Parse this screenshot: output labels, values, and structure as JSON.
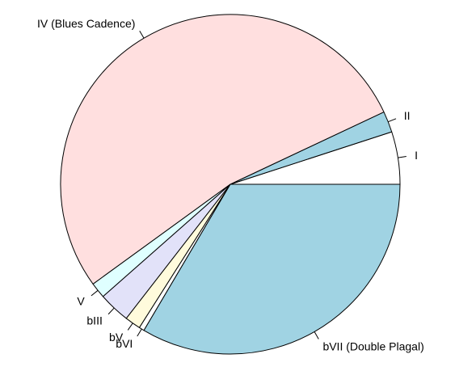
{
  "chart_data": {
    "type": "pie",
    "title": "",
    "direction": "counterclockwise",
    "start_angle_deg": 0,
    "slices": [
      {
        "label": "I",
        "value": 5.0,
        "color": "#ffffff"
      },
      {
        "label": "II",
        "value": 2.0,
        "color": "#a0d3e3"
      },
      {
        "label": "IV (Blues Cadence)",
        "value": 53.0,
        "color": "#ffdfdf"
      },
      {
        "label": "V",
        "value": 1.5,
        "color": "#dfffff"
      },
      {
        "label": "bIII",
        "value": 3.0,
        "color": "#e2e2f9"
      },
      {
        "label": "bV",
        "value": 1.5,
        "color": "#fffbdc"
      },
      {
        "label": "bVI",
        "value": 0.5,
        "color": "#ffffff"
      },
      {
        "label": "bVII (Double Plagal)",
        "value": 33.5,
        "color": "#a0d3e3"
      }
    ]
  }
}
